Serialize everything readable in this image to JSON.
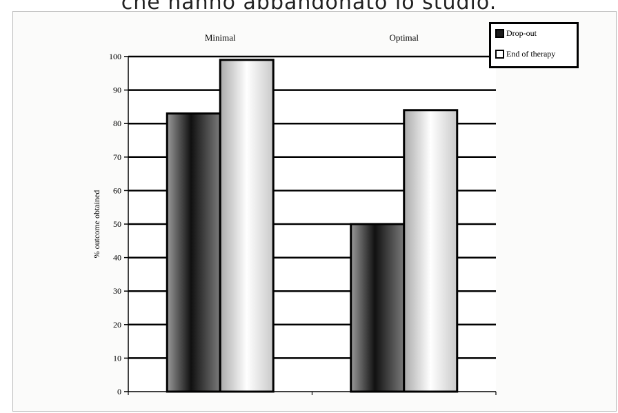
{
  "caption": "che hanno abbandonato lo studio.",
  "chart_data": {
    "type": "bar",
    "categories": [
      "Minimal",
      "Optimal"
    ],
    "series": [
      {
        "name": "Drop-out",
        "values": [
          83,
          50
        ]
      },
      {
        "name": "End of therapy",
        "values": [
          99,
          84
        ]
      }
    ],
    "title": "",
    "xlabel": "",
    "ylabel": "% outcome obtained",
    "ylim": [
      0,
      100
    ],
    "yticks": [
      0,
      10,
      20,
      30,
      40,
      50,
      60,
      70,
      80,
      90,
      100
    ],
    "grid": true,
    "legend_position": "top-right",
    "category_label_position": "top"
  },
  "legend": {
    "items": [
      {
        "label": "Drop-out",
        "color": "#1c1c1c"
      },
      {
        "label": "End of therapy",
        "color": "#ffffff"
      }
    ]
  },
  "colors": {
    "dropout_gradient": [
      "#9a9a9a",
      "#101010",
      "#7a7a7a"
    ],
    "end_gradient": [
      "#aaaaaa",
      "#ffffff",
      "#c9c9c9"
    ],
    "grid": "#000000"
  }
}
